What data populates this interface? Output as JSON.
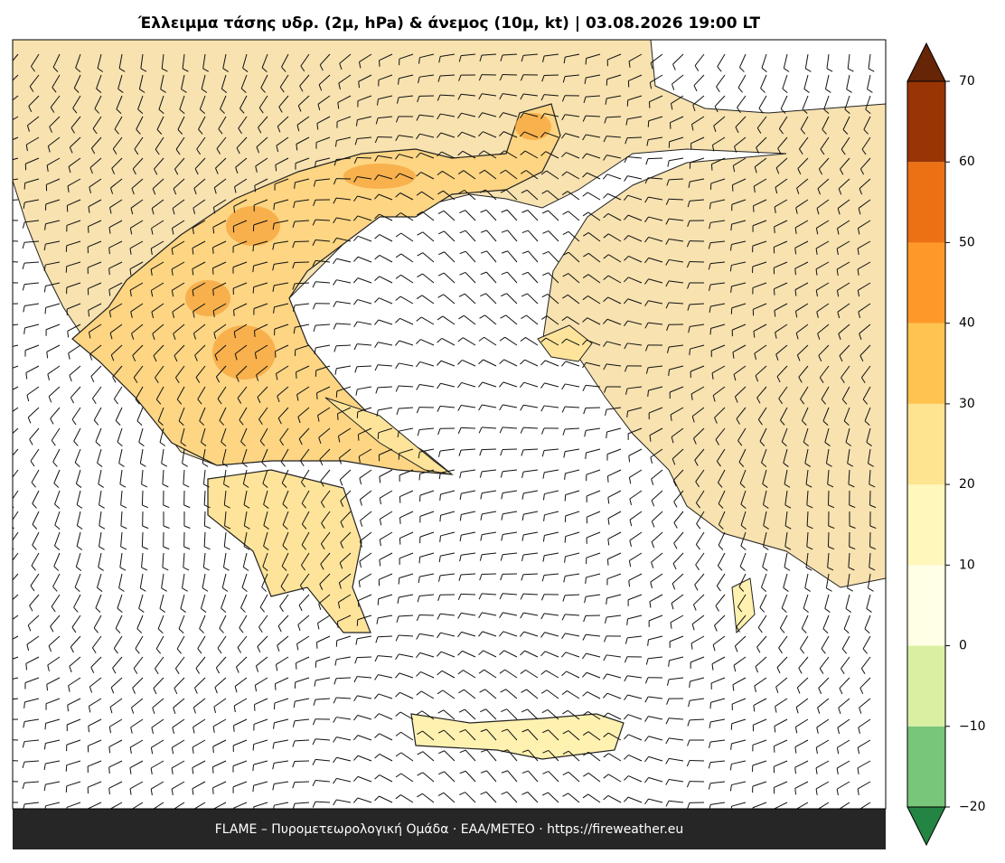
{
  "title": "Έλλειμμα τάσης υδρ. (2μ, hPa) & άνεμος (10μ, kt)  |  03.08.2026 19:00 LT",
  "footer": "FLAME – Πυρομετεωρολογική Ομάδα · ΕΑΑ/METEO · https://fireweather.eu",
  "colorbar": {
    "lim": [
      -20,
      70
    ],
    "ticks": [
      {
        "value": -20,
        "label": "−20"
      },
      {
        "value": -10,
        "label": "−10"
      },
      0,
      10,
      20,
      30,
      40,
      50,
      60,
      70
    ],
    "colors": [
      "#78c679",
      "#d9f0a3",
      "#ffffe5",
      "#fff7bc",
      "#fee391",
      "#fec44f",
      "#fe9929",
      "#ec7014",
      "#993404"
    ],
    "under_color": "#238443",
    "over_color": "#662506"
  }
}
